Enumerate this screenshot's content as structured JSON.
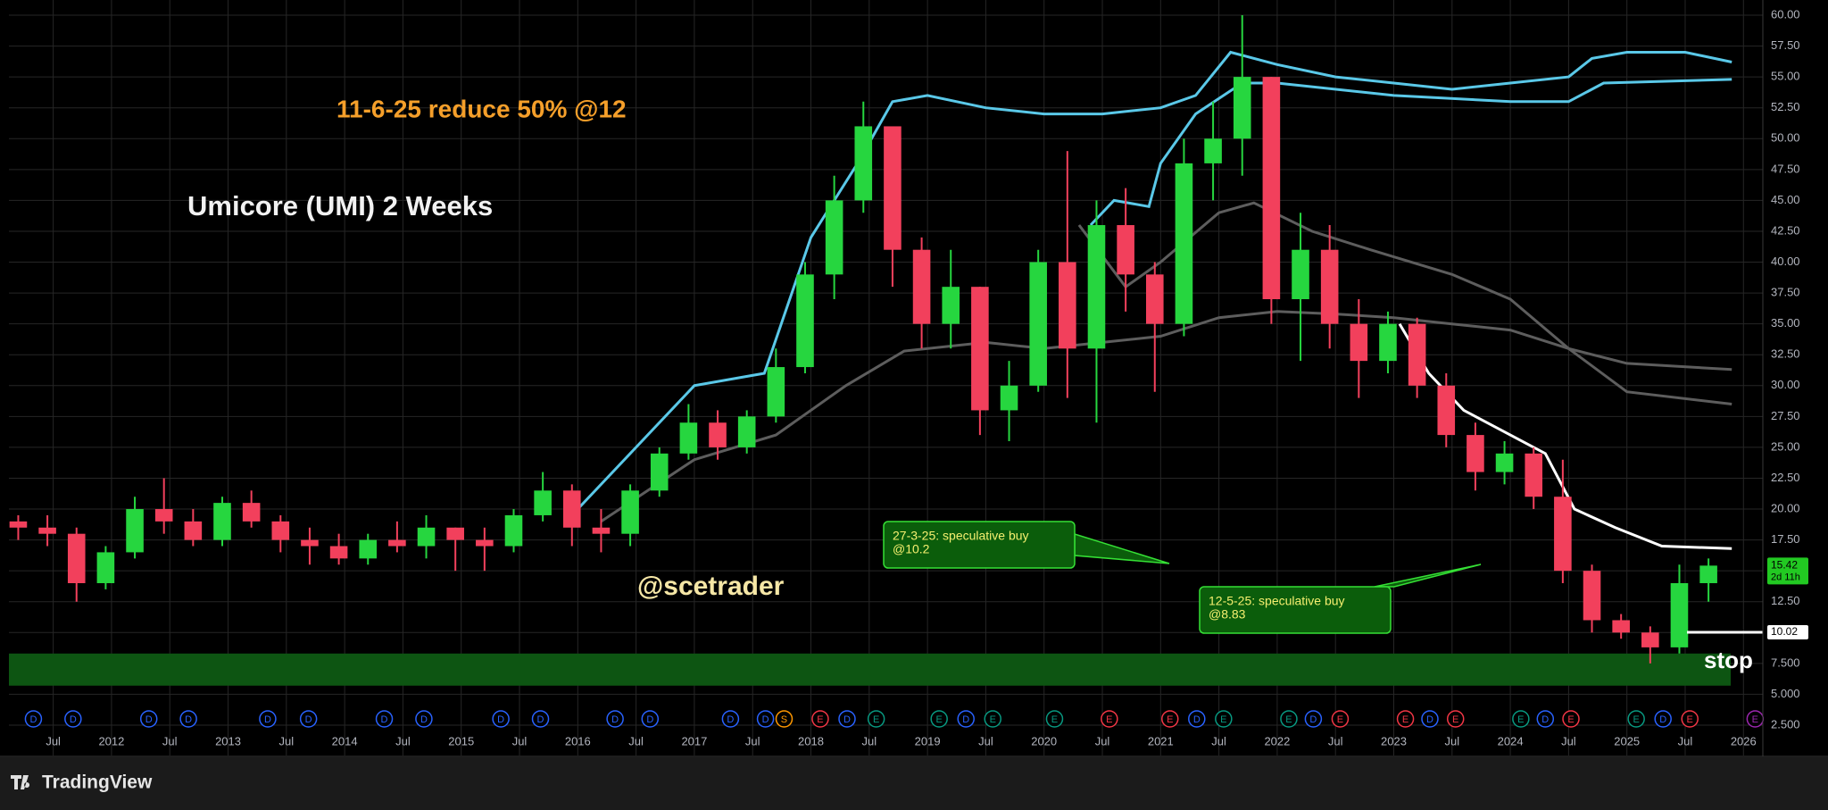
{
  "chart_data": {
    "type": "candlestick",
    "title": "Umicore (UMI) 2 Weeks",
    "annotations": [
      "11-6-25 reduce 50% @12",
      "@scetrader",
      "stop"
    ],
    "callouts": [
      {
        "lines": [
          "27-3-25: speculative buy",
          "@10.2"
        ]
      },
      {
        "lines": [
          "12-5-25: speculative buy",
          "@8.83"
        ]
      }
    ],
    "up_color": "#26d63f",
    "down_color": "#f2405c",
    "grid": true,
    "x": [
      2011.2,
      2011.45,
      2011.7,
      2011.95,
      2012.2,
      2012.45,
      2012.7,
      2012.95,
      2013.2,
      2013.45,
      2013.7,
      2013.95,
      2014.2,
      2014.45,
      2014.7,
      2014.95,
      2015.2,
      2015.45,
      2015.7,
      2015.95,
      2016.2,
      2016.45,
      2016.7,
      2016.95,
      2017.2,
      2017.45,
      2017.7,
      2017.95,
      2018.2,
      2018.45,
      2018.7,
      2018.95,
      2019.2,
      2019.45,
      2019.7,
      2019.95,
      2020.2,
      2020.45,
      2020.7,
      2020.95,
      2021.2,
      2021.45,
      2021.7,
      2021.95,
      2022.2,
      2022.45,
      2022.7,
      2022.95,
      2023.2,
      2023.45,
      2023.7,
      2023.95,
      2024.2,
      2024.45,
      2024.7,
      2024.95,
      2025.2,
      2025.45,
      2025.7
    ],
    "open": [
      19,
      18.5,
      18,
      14,
      16.5,
      20,
      19,
      17.5,
      20.5,
      19,
      17.5,
      17,
      16,
      17.5,
      17,
      18.5,
      17.5,
      17,
      19.5,
      21.5,
      18.5,
      18,
      21.5,
      24.5,
      27,
      25,
      27.5,
      31.5,
      39,
      45,
      51,
      41,
      35,
      38,
      28,
      30,
      40,
      33,
      43,
      39,
      35,
      48,
      50,
      55,
      37,
      41,
      35,
      32,
      35,
      30,
      26,
      23,
      24.5,
      21,
      15,
      11,
      10,
      8.8,
      14
    ],
    "high": [
      19.5,
      19.5,
      18.5,
      17,
      21,
      22.5,
      20,
      21,
      21.5,
      19.5,
      18.5,
      18,
      18,
      19,
      19.5,
      18.5,
      18.5,
      20,
      23,
      22,
      20,
      22,
      25,
      28.5,
      28,
      28,
      33,
      40,
      47,
      53,
      51,
      42,
      41,
      38,
      32,
      41,
      49,
      45,
      46,
      40,
      50,
      53,
      60,
      55,
      44,
      43,
      37,
      36,
      35.5,
      31,
      27,
      25.5,
      25,
      24,
      15.5,
      11.5,
      10.5,
      15.5,
      16
    ],
    "low": [
      17.5,
      17,
      12.5,
      13.5,
      16,
      18,
      17,
      17,
      18.5,
      16.5,
      15.5,
      15.5,
      15.5,
      16.5,
      16,
      15,
      15,
      16.5,
      19,
      17,
      16.5,
      17,
      21,
      24,
      24,
      24.5,
      27,
      31,
      37,
      44,
      38,
      33,
      33,
      26,
      25.5,
      29.5,
      29,
      27,
      36,
      29.5,
      34,
      45,
      47,
      35,
      32,
      33,
      29,
      31,
      29,
      25,
      21.5,
      22,
      20,
      14,
      10,
      9.5,
      7.5,
      8.3,
      12.5
    ],
    "close": [
      18.5,
      18,
      14,
      16.5,
      20,
      19,
      17.5,
      20.5,
      19,
      17.5,
      17,
      16,
      17.5,
      17,
      18.5,
      17.5,
      17,
      19.5,
      21.5,
      18.5,
      18,
      21.5,
      24.5,
      27,
      25,
      27.5,
      31.5,
      39,
      45,
      51,
      41,
      35,
      38,
      28,
      30,
      40,
      33,
      43,
      39,
      35,
      48,
      50,
      55,
      37,
      41,
      35,
      32,
      35,
      30,
      26,
      23,
      24.5,
      21,
      15,
      11,
      10,
      8.8,
      14,
      15.42
    ],
    "countdown": "2d 11h",
    "overlays": [
      {
        "color": "#5ac8e8",
        "x": [
          2016.0,
          2016.5,
          2017.0,
          2017.6,
          2018.0,
          2018.4,
          2018.7,
          2019.0,
          2019.5,
          2020.0,
          2020.5,
          2021.0,
          2021.3,
          2021.6,
          2022.0,
          2022.5,
          2023.0,
          2023.5,
          2024.0,
          2024.5,
          2024.7,
          2025.0,
          2025.5,
          2025.9
        ],
        "values": [
          20,
          25,
          30,
          31,
          42,
          48,
          53,
          53.5,
          52.5,
          52,
          52,
          52.5,
          53.5,
          57,
          56,
          55,
          54.5,
          54,
          54.5,
          55,
          56.5,
          57,
          57,
          56.2
        ]
      },
      {
        "color": "#5ac8e8",
        "x": [
          2020.4,
          2020.6,
          2020.9,
          2021.0,
          2021.3,
          2021.7,
          2022.0,
          2023.0,
          2024.0,
          2024.5,
          2024.8,
          2025.9
        ],
        "values": [
          43,
          45,
          44.5,
          48,
          52,
          54.5,
          54.5,
          53.5,
          53,
          53,
          54.5,
          54.8
        ]
      },
      {
        "color": "#5d5d5d",
        "x": [
          2016.2,
          2017.0,
          2017.7,
          2018.3,
          2018.8,
          2019.5,
          2020.0,
          2020.5,
          2021.0,
          2021.5,
          2022.0,
          2022.5,
          2023.0,
          2023.5,
          2024.0,
          2024.5,
          2025.0,
          2025.9
        ],
        "values": [
          19,
          24,
          26,
          30,
          32.8,
          33.5,
          33,
          33.5,
          34,
          35.5,
          36,
          35.8,
          35.5,
          35,
          34.5,
          33,
          31.8,
          31.3
        ]
      },
      {
        "color": "#5d5d5d",
        "x": [
          2020.3,
          2020.7,
          2021.0,
          2021.5,
          2021.8,
          2022.3,
          2022.8,
          2023.5,
          2024.0,
          2024.5,
          2025.0,
          2025.9
        ],
        "values": [
          43,
          38,
          40,
          44,
          44.8,
          42.5,
          41,
          39,
          37,
          33,
          29.5,
          28.5
        ]
      },
      {
        "color": "#ffffff",
        "x": [
          2023.05,
          2023.3,
          2023.6,
          2024.0,
          2024.3,
          2024.55,
          2024.9,
          2025.3,
          2025.9
        ],
        "values": [
          35,
          31,
          28,
          26,
          24.5,
          20,
          18.5,
          17,
          16.8
        ]
      }
    ],
    "support_zone": [
      5.7,
      8.3
    ],
    "zone_color": "#0d5512",
    "stop_level": 10.02,
    "events": [
      {
        "x": 2011.33,
        "label": "D",
        "color": "#2962ff"
      },
      {
        "x": 2011.67,
        "label": "D",
        "color": "#2962ff"
      },
      {
        "x": 2012.32,
        "label": "D",
        "color": "#2962ff"
      },
      {
        "x": 2012.66,
        "label": "D",
        "color": "#2962ff"
      },
      {
        "x": 2013.34,
        "label": "D",
        "color": "#2962ff"
      },
      {
        "x": 2013.69,
        "label": "D",
        "color": "#2962ff"
      },
      {
        "x": 2014.34,
        "label": "D",
        "color": "#2962ff"
      },
      {
        "x": 2014.68,
        "label": "D",
        "color": "#2962ff"
      },
      {
        "x": 2015.34,
        "label": "D",
        "color": "#2962ff"
      },
      {
        "x": 2015.68,
        "label": "D",
        "color": "#2962ff"
      },
      {
        "x": 2016.32,
        "label": "D",
        "color": "#2962ff"
      },
      {
        "x": 2016.62,
        "label": "D",
        "color": "#2962ff"
      },
      {
        "x": 2017.31,
        "label": "D",
        "color": "#2962ff"
      },
      {
        "x": 2017.61,
        "label": "D",
        "color": "#2962ff"
      },
      {
        "x": 2017.77,
        "label": "S",
        "color": "#ff9800"
      },
      {
        "x": 2018.08,
        "label": "E",
        "color": "#f23645"
      },
      {
        "x": 2018.31,
        "label": "D",
        "color": "#2962ff"
      },
      {
        "x": 2018.56,
        "label": "E",
        "color": "#089981"
      },
      {
        "x": 2019.1,
        "label": "E",
        "color": "#089981"
      },
      {
        "x": 2019.33,
        "label": "D",
        "color": "#2962ff"
      },
      {
        "x": 2019.56,
        "label": "E",
        "color": "#089981"
      },
      {
        "x": 2020.09,
        "label": "E",
        "color": "#089981"
      },
      {
        "x": 2020.56,
        "label": "E",
        "color": "#f23645"
      },
      {
        "x": 2021.08,
        "label": "E",
        "color": "#f23645"
      },
      {
        "x": 2021.31,
        "label": "D",
        "color": "#2962ff"
      },
      {
        "x": 2021.54,
        "label": "E",
        "color": "#089981"
      },
      {
        "x": 2022.1,
        "label": "E",
        "color": "#089981"
      },
      {
        "x": 2022.31,
        "label": "D",
        "color": "#2962ff"
      },
      {
        "x": 2022.54,
        "label": "E",
        "color": "#f23645"
      },
      {
        "x": 2023.1,
        "label": "E",
        "color": "#f23645"
      },
      {
        "x": 2023.31,
        "label": "D",
        "color": "#2962ff"
      },
      {
        "x": 2023.53,
        "label": "E",
        "color": "#f23645"
      },
      {
        "x": 2024.09,
        "label": "E",
        "color": "#089981"
      },
      {
        "x": 2024.3,
        "label": "D",
        "color": "#2962ff"
      },
      {
        "x": 2024.52,
        "label": "E",
        "color": "#f23645"
      },
      {
        "x": 2025.08,
        "label": "E",
        "color": "#089981"
      },
      {
        "x": 2025.31,
        "label": "D",
        "color": "#2962ff"
      },
      {
        "x": 2025.54,
        "label": "E",
        "color": "#f23645"
      },
      {
        "x": 2026.1,
        "label": "E",
        "color": "#9c27b0"
      }
    ],
    "xlim": [
      2011.12,
      2026.17
    ],
    "xticks": [
      {
        "value": 2011.5,
        "label": "Jul"
      },
      2012,
      {
        "value": 2012.5,
        "label": "Jul"
      },
      2013,
      {
        "value": 2013.5,
        "label": "Jul"
      },
      2014,
      {
        "value": 2014.5,
        "label": "Jul"
      },
      2015,
      {
        "value": 2015.5,
        "label": "Jul"
      },
      2016,
      {
        "value": 2016.5,
        "label": "Jul"
      },
      2017,
      {
        "value": 2017.5,
        "label": "Jul"
      },
      2018,
      {
        "value": 2018.5,
        "label": "Jul"
      },
      2019,
      {
        "value": 2019.5,
        "label": "Jul"
      },
      2020,
      {
        "value": 2020.5,
        "label": "Jul"
      },
      2021,
      {
        "value": 2021.5,
        "label": "Jul"
      },
      2022,
      {
        "value": 2022.5,
        "label": "Jul"
      },
      2023,
      {
        "value": 2023.5,
        "label": "Jul"
      },
      2024,
      {
        "value": 2024.5,
        "label": "Jul"
      },
      2025,
      {
        "value": 2025.5,
        "label": "Jul"
      },
      2026
    ],
    "ylim": [
      0.04,
      61.23
    ],
    "yticks": [
      {
        "value": 2.5,
        "label": "2.500"
      },
      {
        "value": 5,
        "label": "5.000"
      },
      {
        "value": 7.5,
        "label": "7.500"
      },
      {
        "value": 10,
        "label": "10.00"
      },
      {
        "value": 12.5,
        "label": "12.50"
      },
      {
        "value": 15,
        "label": "15.00"
      },
      {
        "value": 17.5,
        "label": "17.50"
      },
      {
        "value": 20,
        "label": "20.00"
      },
      {
        "value": 22.5,
        "label": "22.50"
      },
      {
        "value": 25,
        "label": "25.00"
      },
      {
        "value": 27.5,
        "label": "27.50"
      },
      {
        "value": 30,
        "label": "30.00"
      },
      {
        "value": 32.5,
        "label": "32.50"
      },
      {
        "value": 35,
        "label": "35.00"
      },
      {
        "value": 37.5,
        "label": "37.50"
      },
      {
        "value": 40,
        "label": "40.00"
      },
      {
        "value": 42.5,
        "label": "42.50"
      },
      {
        "value": 45,
        "label": "45.00"
      },
      {
        "value": 47.5,
        "label": "47.50"
      },
      {
        "value": 50,
        "label": "50.00"
      },
      {
        "value": 52.5,
        "label": "52.50"
      },
      {
        "value": 55,
        "label": "55.00"
      },
      {
        "value": 57.5,
        "label": "57.50"
      },
      {
        "value": 60,
        "label": "60.00"
      }
    ]
  },
  "footer": {
    "brand": "TradingView"
  }
}
